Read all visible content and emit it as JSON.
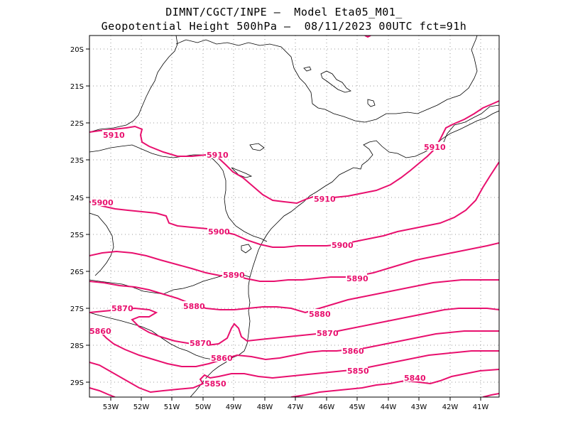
{
  "title": {
    "line1": "DIMNT/CGCT/INPE —  Model Eta05_M01_",
    "line2": "Geopotential Height 500hPa —  08/11/2023 00UTC fct=91h"
  },
  "map": {
    "lon_range": [
      -53.7,
      -40.5
    ],
    "lat_range": [
      -29.4,
      -19.6
    ],
    "lon_ticks": [
      "53W",
      "52W",
      "51W",
      "50W",
      "49W",
      "48W",
      "47W",
      "46W",
      "45W",
      "44W",
      "43W",
      "42W",
      "41W"
    ],
    "lat_ticks": [
      "20S",
      "21S",
      "22S",
      "23S",
      "24S",
      "25S",
      "26S",
      "27S",
      "28S",
      "29S"
    ],
    "contour_color": "#e8106e",
    "coast_color": "#000000",
    "grid_color": "#9a9a9a"
  },
  "contours": [
    {
      "value": "5910",
      "labels": [
        "5910",
        "5910",
        "5910",
        "5910"
      ]
    },
    {
      "value": "5900",
      "labels": [
        "5900",
        "5900",
        "5900"
      ]
    },
    {
      "value": "5890",
      "labels": [
        "5890",
        "5890"
      ]
    },
    {
      "value": "5880",
      "labels": [
        "5880",
        "5880"
      ]
    },
    {
      "value": "5870",
      "labels": [
        "5870",
        "5870",
        "5870"
      ]
    },
    {
      "value": "5860",
      "labels": [
        "5860",
        "5860",
        "5860"
      ]
    },
    {
      "value": "5850",
      "labels": [
        "5850",
        "5850"
      ]
    },
    {
      "value": "5840",
      "labels": [
        "5840"
      ]
    }
  ]
}
